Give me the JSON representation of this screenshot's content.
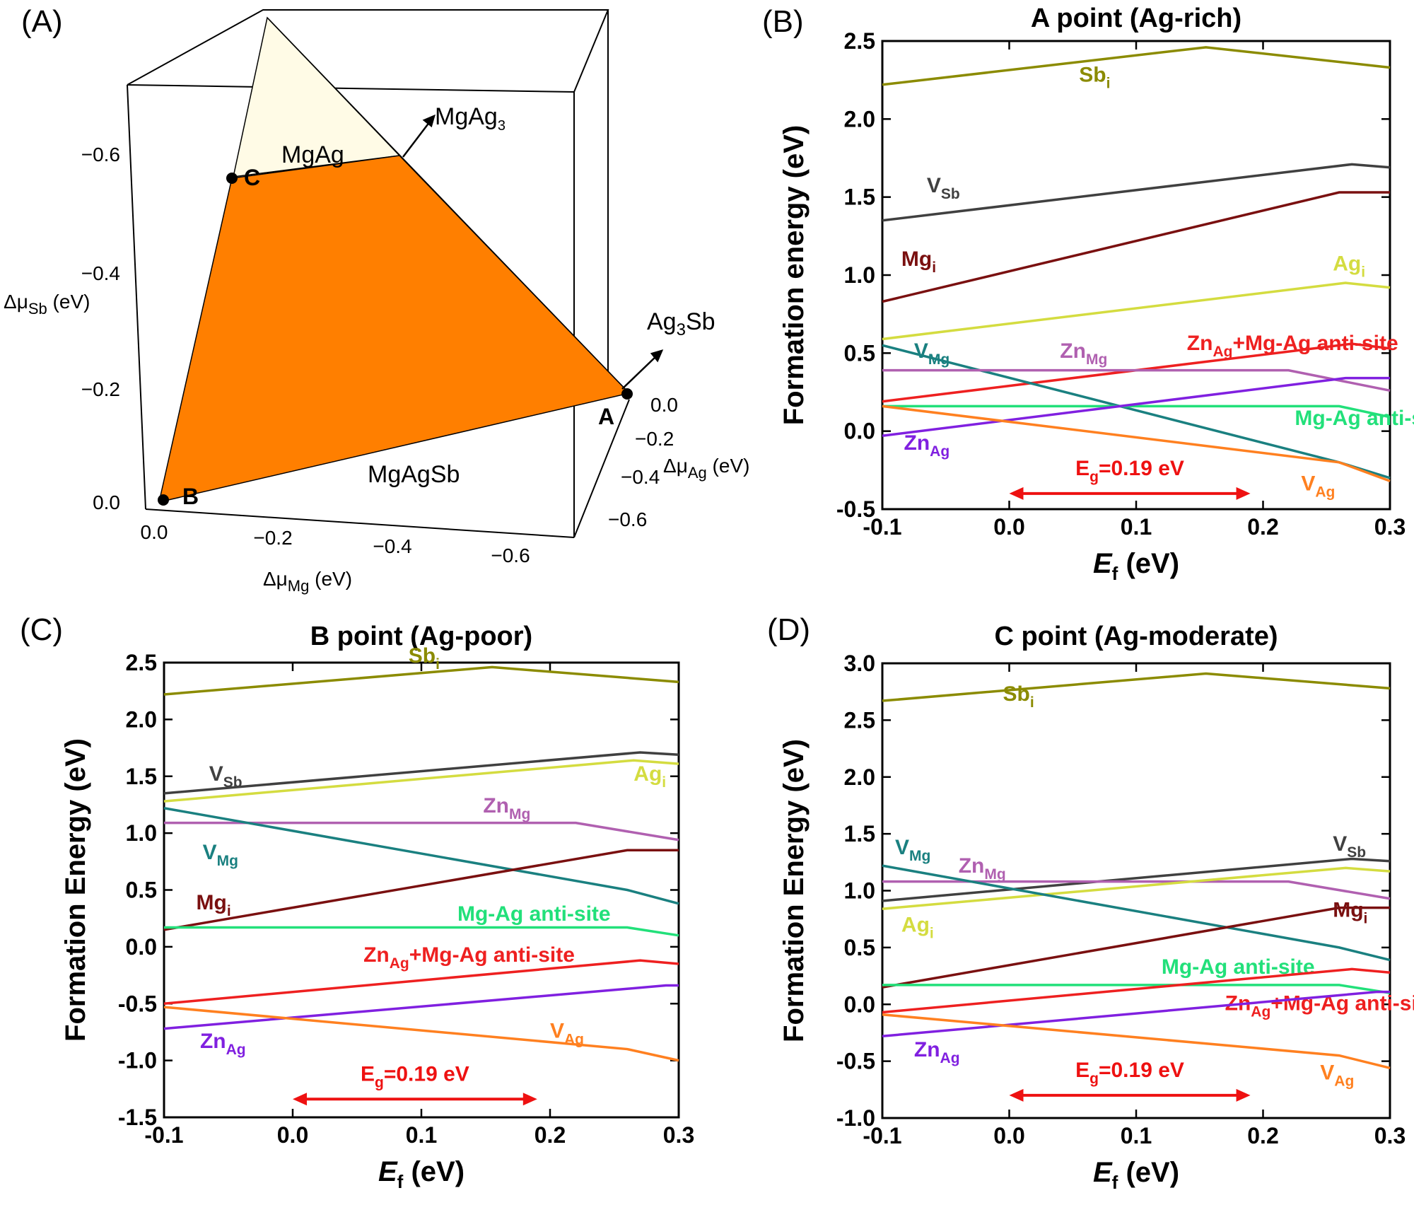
{
  "panel_a": {
    "panel_label": "(A)",
    "axis_mg": {
      "label": "Δμ",
      "sub": "Mg",
      "unit": " (eV)",
      "ticks": [
        "0.0",
        "−0.2",
        "−0.4",
        "−0.6"
      ]
    },
    "axis_sb": {
      "label": "Δμ",
      "sub": "Sb",
      "unit": " (eV)",
      "ticks": [
        "0.0",
        "−0.2",
        "−0.4",
        "−0.6"
      ]
    },
    "axis_ag": {
      "label": "Δμ",
      "sub": "Ag",
      "unit": " (eV)",
      "ticks": [
        "0.0",
        "−0.2",
        "−0.4",
        "−0.6"
      ]
    },
    "regions": {
      "mgag": "MgAg",
      "mgagsb": "MgAgSb",
      "mgag3": "MgAg",
      "mgag3_sub": "3",
      "ag3sb": "Ag",
      "ag3sb_sub": "3",
      "ag3sb_tail": "Sb"
    },
    "points": {
      "A": "A",
      "B": "B",
      "C": "C"
    },
    "colors": {
      "stable_region": "#ff7f00",
      "mgag_region": "#fffbe6"
    }
  },
  "chart_data": [
    {
      "panel_label": "(B)",
      "title": "A point (Ag-rich)",
      "type": "line",
      "xlabel": "E",
      "xlabel_sub": "f",
      "xlabel_unit": " (eV)",
      "ylabel": "Formation energy (eV)",
      "xlim": [
        -0.1,
        0.3
      ],
      "ylim": [
        -0.5,
        2.5
      ],
      "xticks": [
        "-0.1",
        "0.0",
        "0.1",
        "0.2",
        "0.3"
      ],
      "yticks": [
        "-0.5",
        "0.0",
        "0.5",
        "1.0",
        "1.5",
        "2.0",
        "2.5"
      ],
      "bandgap": {
        "label": "E",
        "sub": "g",
        "tail": "=0.19 eV",
        "from": 0.0,
        "to": 0.19,
        "y": -0.4
      },
      "series": [
        {
          "name": "Sb",
          "sub": "i",
          "color": "#8b8b00",
          "x": [
            -0.1,
            0.155,
            0.3
          ],
          "y": [
            2.22,
            2.46,
            2.33
          ]
        },
        {
          "name": "V",
          "sub": "Sb",
          "color": "#404040",
          "x": [
            -0.1,
            0.27,
            0.3
          ],
          "y": [
            1.35,
            1.71,
            1.69
          ]
        },
        {
          "name": "Mg",
          "sub": "i",
          "color": "#7a1010",
          "x": [
            -0.1,
            0.26,
            0.3
          ],
          "y": [
            0.83,
            1.53,
            1.53
          ]
        },
        {
          "name": "Ag",
          "sub": "i",
          "color": "#d4dc40",
          "x": [
            -0.1,
            0.265,
            0.3
          ],
          "y": [
            0.59,
            0.95,
            0.92
          ]
        },
        {
          "name": "Zn",
          "sub": "Ag",
          "tail": "+Mg-Ag anti-site",
          "color": "#ee2020",
          "x": [
            -0.1,
            0.27,
            0.3
          ],
          "y": [
            0.19,
            0.56,
            0.53
          ]
        },
        {
          "name": "V",
          "sub": "Mg",
          "color": "#1a8080",
          "x": [
            -0.1,
            0.26,
            0.3
          ],
          "y": [
            0.55,
            -0.2,
            -0.3
          ]
        },
        {
          "name": "Zn",
          "sub": "Mg",
          "color": "#b060b0",
          "x": [
            -0.1,
            0.22,
            0.3
          ],
          "y": [
            0.39,
            0.39,
            0.26
          ]
        },
        {
          "name": "Mg-Ag anti-site",
          "color": "#22e07a",
          "x": [
            -0.1,
            0.26,
            0.3
          ],
          "y": [
            0.16,
            0.16,
            0.09
          ]
        },
        {
          "name": "Zn",
          "sub": "Ag",
          "color": "#8020e0",
          "x": [
            -0.1,
            0.265,
            0.3
          ],
          "y": [
            -0.03,
            0.34,
            0.34
          ]
        },
        {
          "name": "V",
          "sub": "Ag",
          "color": "#ff8020",
          "x": [
            -0.1,
            0.26,
            0.3
          ],
          "y": [
            0.16,
            -0.2,
            -0.32
          ]
        }
      ]
    },
    {
      "panel_label": "(C)",
      "title": "B point (Ag-poor)",
      "type": "line",
      "xlabel": "E",
      "xlabel_sub": "f",
      "xlabel_unit": " (eV)",
      "ylabel": "Formation Energy (eV)",
      "xlim": [
        -0.1,
        0.3
      ],
      "ylim": [
        -1.5,
        2.5
      ],
      "xticks": [
        "-0.1",
        "0.0",
        "0.1",
        "0.2",
        "0.3"
      ],
      "yticks": [
        "-1.5",
        "-1.0",
        "-0.5",
        "0.0",
        "0.5",
        "1.0",
        "1.5",
        "2.0",
        "2.5"
      ],
      "bandgap": {
        "label": "E",
        "sub": "g",
        "tail": "=0.19 eV",
        "from": 0.0,
        "to": 0.19,
        "y": -1.34
      },
      "series": [
        {
          "name": "Sb",
          "sub": "i",
          "color": "#8b8b00",
          "x": [
            -0.1,
            0.155,
            0.3
          ],
          "y": [
            2.22,
            2.46,
            2.33
          ]
        },
        {
          "name": "V",
          "sub": "Sb",
          "color": "#404040",
          "x": [
            -0.1,
            0.27,
            0.3
          ],
          "y": [
            1.35,
            1.71,
            1.69
          ]
        },
        {
          "name": "Ag",
          "sub": "i",
          "color": "#d4dc40",
          "x": [
            -0.1,
            0.265,
            0.3
          ],
          "y": [
            1.28,
            1.64,
            1.61
          ]
        },
        {
          "name": "Zn",
          "sub": "Mg",
          "color": "#b060b0",
          "x": [
            -0.1,
            0.22,
            0.3
          ],
          "y": [
            1.09,
            1.09,
            0.94
          ]
        },
        {
          "name": "V",
          "sub": "Mg",
          "color": "#1a8080",
          "x": [
            -0.1,
            0.26,
            0.3
          ],
          "y": [
            1.22,
            0.5,
            0.38
          ]
        },
        {
          "name": "Mg",
          "sub": "i",
          "color": "#7a1010",
          "x": [
            -0.1,
            0.26,
            0.3
          ],
          "y": [
            0.15,
            0.85,
            0.85
          ]
        },
        {
          "name": "Mg-Ag anti-site",
          "color": "#22e07a",
          "x": [
            -0.1,
            0.26,
            0.3
          ],
          "y": [
            0.17,
            0.17,
            0.1
          ]
        },
        {
          "name": "Zn",
          "sub": "Ag",
          "tail": "+Mg-Ag anti-site",
          "color": "#ee2020",
          "x": [
            -0.1,
            0.27,
            0.3
          ],
          "y": [
            -0.5,
            -0.12,
            -0.15
          ]
        },
        {
          "name": "Zn",
          "sub": "Ag",
          "color": "#8020e0",
          "x": [
            -0.1,
            0.29,
            0.3
          ],
          "y": [
            -0.72,
            -0.34,
            -0.34
          ]
        },
        {
          "name": "V",
          "sub": "Ag",
          "color": "#ff8020",
          "x": [
            -0.1,
            0.26,
            0.3
          ],
          "y": [
            -0.53,
            -0.9,
            -1.0
          ]
        }
      ]
    },
    {
      "panel_label": "(D)",
      "title": "C point (Ag-moderate)",
      "type": "line",
      "xlabel": "E",
      "xlabel_sub": "f",
      "xlabel_unit": " (eV)",
      "ylabel": "Formation Energy (eV)",
      "xlim": [
        -0.1,
        0.3
      ],
      "ylim": [
        -1.0,
        3.0
      ],
      "xticks": [
        "-0.1",
        "0.0",
        "0.1",
        "0.2",
        "0.3"
      ],
      "yticks": [
        "-1.0",
        "-0.5",
        "0.0",
        "0.5",
        "1.0",
        "1.5",
        "2.0",
        "2.5",
        "3.0"
      ],
      "bandgap": {
        "label": "E",
        "sub": "g",
        "tail": "=0.19 eV",
        "from": 0.0,
        "to": 0.19,
        "y": -0.8
      },
      "series": [
        {
          "name": "Sb",
          "sub": "i",
          "color": "#8b8b00",
          "x": [
            -0.1,
            0.155,
            0.3
          ],
          "y": [
            2.67,
            2.91,
            2.78
          ]
        },
        {
          "name": "V",
          "sub": "Sb",
          "color": "#404040",
          "x": [
            -0.1,
            0.27,
            0.3
          ],
          "y": [
            0.91,
            1.28,
            1.26
          ]
        },
        {
          "name": "Zn",
          "sub": "Mg",
          "color": "#b060b0",
          "x": [
            -0.1,
            0.22,
            0.3
          ],
          "y": [
            1.08,
            1.08,
            0.93
          ]
        },
        {
          "name": "Ag",
          "sub": "i",
          "color": "#d4dc40",
          "x": [
            -0.1,
            0.265,
            0.3
          ],
          "y": [
            0.84,
            1.2,
            1.17
          ]
        },
        {
          "name": "V",
          "sub": "Mg",
          "color": "#1a8080",
          "x": [
            -0.1,
            0.26,
            0.3
          ],
          "y": [
            1.22,
            0.5,
            0.39
          ]
        },
        {
          "name": "Mg",
          "sub": "i",
          "color": "#7a1010",
          "x": [
            -0.1,
            0.26,
            0.3
          ],
          "y": [
            0.15,
            0.85,
            0.85
          ]
        },
        {
          "name": "Mg-Ag anti-site",
          "color": "#22e07a",
          "x": [
            -0.1,
            0.26,
            0.3
          ],
          "y": [
            0.17,
            0.17,
            0.1
          ]
        },
        {
          "name": "Zn",
          "sub": "Ag",
          "tail": "+Mg-Ag anti-site",
          "color": "#ee2020",
          "x": [
            -0.1,
            0.27,
            0.3
          ],
          "y": [
            -0.07,
            0.31,
            0.28
          ]
        },
        {
          "name": "Zn",
          "sub": "Ag",
          "color": "#8020e0",
          "x": [
            -0.1,
            0.29,
            0.3
          ],
          "y": [
            -0.28,
            0.11,
            0.11
          ]
        },
        {
          "name": "V",
          "sub": "Ag",
          "color": "#ff8020",
          "x": [
            -0.1,
            0.26,
            0.3
          ],
          "y": [
            -0.09,
            -0.45,
            -0.56
          ]
        }
      ]
    }
  ]
}
